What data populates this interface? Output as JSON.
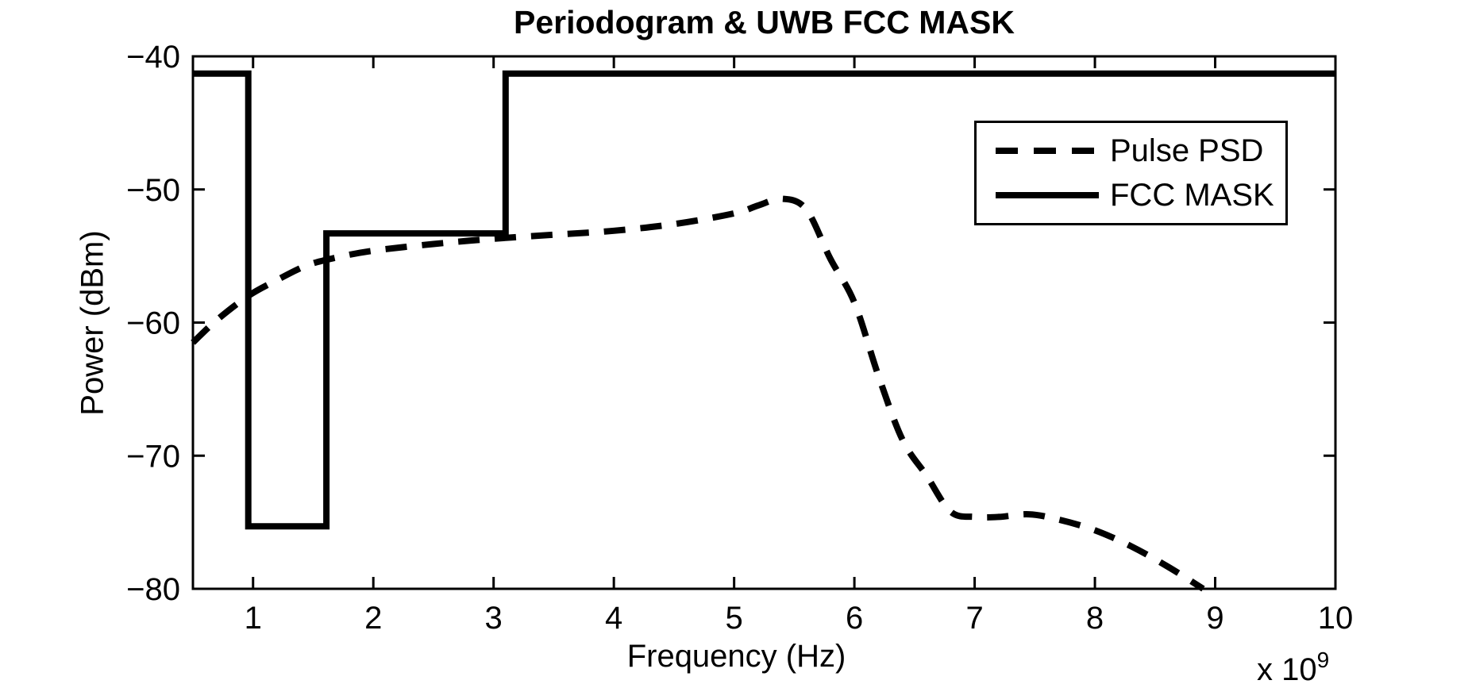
{
  "title": "Periodogram & UWB FCC MASK",
  "axes": {
    "xlabel": "Frequency (Hz)",
    "ylabel": "Power (dBm)",
    "x_multiplier_base": "x 10",
    "x_multiplier_exp": "9"
  },
  "legend": {
    "position": "upper-right",
    "items": [
      {
        "label": "Pulse PSD",
        "style": "dashed"
      },
      {
        "label": "FCC MASK",
        "style": "solid"
      }
    ]
  },
  "colors": {
    "line": "#000000",
    "background": "#ffffff"
  },
  "chart_data": {
    "type": "line",
    "title": "Periodogram & UWB FCC MASK",
    "xlabel": "Frequency (Hz)",
    "ylabel": "Power (dBm)",
    "x_unit_note": "x 10^9 Hz",
    "xlim": [
      0.5,
      10
    ],
    "ylim": [
      -80,
      -40
    ],
    "grid": false,
    "legend_position": "upper right",
    "x_ticks": [
      1,
      2,
      3,
      4,
      5,
      6,
      7,
      8,
      9,
      10
    ],
    "x_tick_labels": [
      "1",
      "2",
      "3",
      "4",
      "5",
      "6",
      "7",
      "8",
      "9",
      "10"
    ],
    "y_ticks": [
      -40,
      -50,
      -60,
      -70,
      -80
    ],
    "y_tick_labels": [
      "−40",
      "−50",
      "−60",
      "−70",
      "−80"
    ],
    "series": [
      {
        "name": "Pulse PSD",
        "style": "dashed",
        "color": "#000000",
        "line_width": 8,
        "smooth": true,
        "x": [
          0.5,
          0.7,
          0.96,
          1.2,
          1.45,
          1.7,
          2.0,
          2.5,
          3.0,
          3.5,
          4.0,
          4.5,
          5.0,
          5.2,
          5.4,
          5.6,
          5.8,
          6.0,
          6.2,
          6.4,
          6.6,
          6.8,
          7.0,
          7.2,
          7.45,
          7.7,
          8.0,
          8.3,
          8.6,
          8.9
        ],
        "y": [
          -61.5,
          -59.8,
          -58.0,
          -56.8,
          -55.7,
          -55.1,
          -54.6,
          -54.1,
          -53.7,
          -53.4,
          -53.1,
          -52.6,
          -51.8,
          -51.2,
          -50.7,
          -51.5,
          -55.2,
          -58.5,
          -64.0,
          -68.8,
          -71.5,
          -74.2,
          -74.6,
          -74.6,
          -74.4,
          -74.8,
          -75.6,
          -76.8,
          -78.3,
          -80.0
        ]
      },
      {
        "name": "FCC MASK",
        "style": "solid",
        "color": "#000000",
        "line_width": 8,
        "smooth": false,
        "x": [
          0.5,
          0.96,
          0.96,
          1.61,
          1.61,
          3.1,
          3.1,
          10
        ],
        "y": [
          -41.3,
          -41.3,
          -75.3,
          -75.3,
          -53.3,
          -53.3,
          -41.3,
          -41.3
        ]
      }
    ]
  }
}
